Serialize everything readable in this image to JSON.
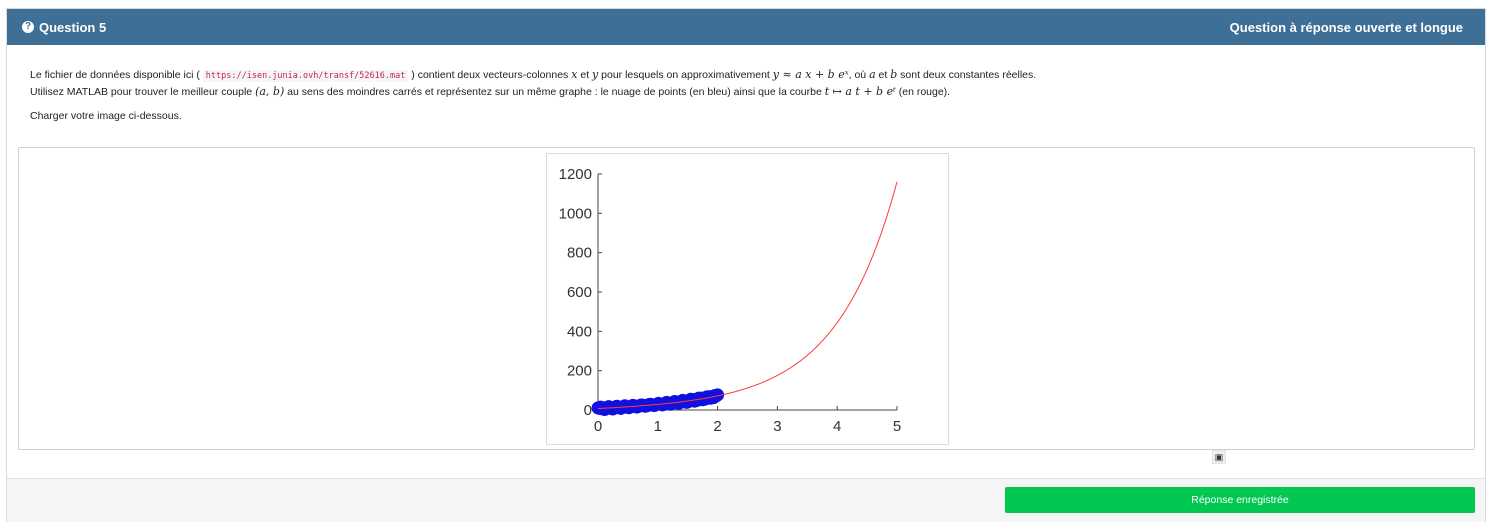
{
  "header": {
    "question_icon": "question-circle-icon",
    "question_label": "Question 5",
    "question_type": "Question à réponse ouverte et longue"
  },
  "statement": {
    "line1_pre": "Le fichier de données disponible ici ( ",
    "file_url": "https://isen.junia.ovh/transf/52616.mat",
    "line1_post": " ) contient deux vecteurs-colonnes ",
    "var_x": "x",
    "and": " et ",
    "var_y": "y",
    "line1_mid": " pour lesquels on approximativement ",
    "formula_approx": "y ≈ a x + b eˣ",
    "line1_where": ", où ",
    "const_a": "a",
    "line1_et": " et ",
    "const_b": "b",
    "line1_end": " sont deux constantes réelles.",
    "line2_pre": "Utilisez MATLAB pour trouver le meilleur couple ",
    "couple": "(a, b)",
    "line2_mid": " au sens des moindres carrés et représentez sur un même graphe : le nuage de points (en bleu) ainsi que la courbe ",
    "curve_formula": "t ↦ a t + b eᵗ",
    "line2_end": " (en rouge).",
    "upload_prompt": "Charger votre image ci-dessous."
  },
  "chart_data": {
    "type": "scatter",
    "xlim": [
      0,
      5
    ],
    "ylim": [
      0,
      1200
    ],
    "x_ticks": [
      "0",
      "1",
      "2",
      "3",
      "4",
      "5"
    ],
    "y_ticks": [
      "0",
      "200",
      "400",
      "600",
      "800",
      "1000",
      "1200"
    ],
    "curve": {
      "color": "#ff3b3b",
      "a": 8,
      "b": 7.55
    },
    "scatter": {
      "color": "#1010e0",
      "x_range": [
        0,
        2
      ]
    },
    "grid": false
  },
  "image_icon": "image-icon",
  "footer": {
    "submit_label": "Réponse enregistrée"
  }
}
